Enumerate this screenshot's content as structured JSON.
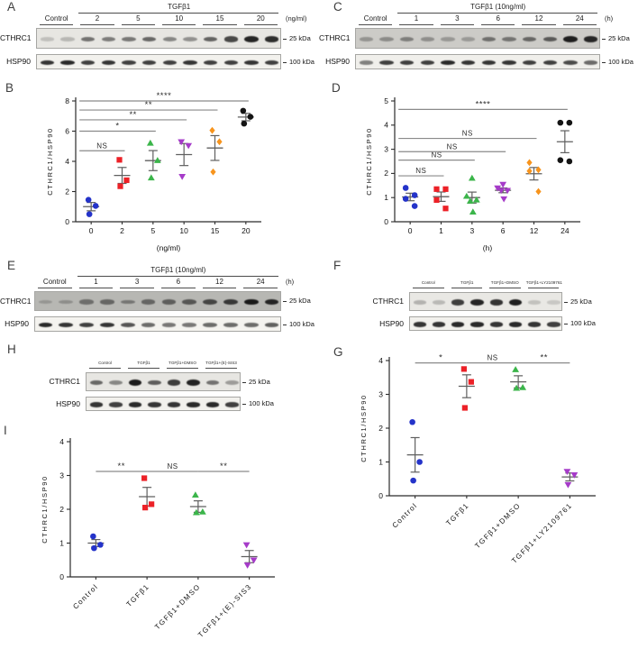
{
  "figure_background": "#ffffff",
  "marker_colors": {
    "group1_blue": "#2433c9",
    "group2_red": "#ec2127",
    "group3_green": "#3bb54a",
    "group4_purple": "#a63bc9",
    "group5_orange": "#f7941d",
    "group6_black": "#141414",
    "errorbar_gray": "#5f5f5f",
    "sig_line_gray": "#8a8a8a"
  },
  "blots": [
    {
      "id": "A",
      "panel_label": "A",
      "header": "TGFβ1",
      "unit": "(ng/ml)",
      "lane_groups": [
        "Control",
        "2",
        "5",
        "10",
        "15",
        "20"
      ],
      "rows": [
        {
          "protein": "CTHRC1",
          "marker": "25 kDa",
          "bg": "#e7e6e2",
          "bands": [
            0.18,
            0.22,
            0.55,
            0.5,
            0.52,
            0.6,
            0.45,
            0.4,
            0.62,
            0.75,
            0.92,
            0.88
          ]
        },
        {
          "protein": "HSP90",
          "marker": "100 kDa",
          "bg": "#f2f1ed",
          "bands": [
            0.85,
            0.9,
            0.8,
            0.85,
            0.8,
            0.8,
            0.8,
            0.85,
            0.8,
            0.8,
            0.85,
            0.8
          ]
        }
      ]
    },
    {
      "id": "C",
      "panel_label": "C",
      "header": "TGFβ1 (10ng/ml)",
      "unit": "(h)",
      "lane_groups": [
        "Control",
        "1",
        "3",
        "6",
        "12",
        "24"
      ],
      "rows": [
        {
          "protein": "CTHRC1",
          "marker": "25 kDa",
          "bg": "#cccbc7",
          "bands": [
            0.3,
            0.35,
            0.42,
            0.33,
            0.28,
            0.27,
            0.5,
            0.48,
            0.55,
            0.62,
            0.95,
            0.9
          ]
        },
        {
          "protein": "HSP90",
          "marker": "100 kDa",
          "bg": "#f0efeb",
          "bands": [
            0.5,
            0.8,
            0.8,
            0.8,
            0.9,
            0.85,
            0.85,
            0.85,
            0.8,
            0.8,
            0.75,
            0.6
          ]
        }
      ]
    },
    {
      "id": "E",
      "panel_label": "E",
      "header": "TGFβ1 (10ng/ml)",
      "unit": "(h)",
      "lane_groups": [
        "Control",
        "1",
        "3",
        "6",
        "12",
        "24"
      ],
      "rows": [
        {
          "protein": "CTHRC1",
          "marker": "25 kDa",
          "bg": "#b7b7b3",
          "bands": [
            0.2,
            0.25,
            0.45,
            0.5,
            0.4,
            0.5,
            0.55,
            0.6,
            0.7,
            0.78,
            0.97,
            0.9
          ]
        },
        {
          "protein": "HSP90",
          "marker": "100 kDa",
          "bg": "#f4f3ef",
          "bands": [
            0.9,
            0.85,
            0.8,
            0.85,
            0.7,
            0.6,
            0.55,
            0.55,
            0.6,
            0.6,
            0.6,
            0.65
          ]
        }
      ]
    },
    {
      "id": "F",
      "panel_label": "F",
      "header": null,
      "unit": null,
      "lane_groups": [
        "Control",
        "TGFβ1",
        "TGFβ1+DMSO",
        "TGFβ1+LY2109761"
      ],
      "rows": [
        {
          "protein": "CTHRC1",
          "marker": "25 kDa",
          "bg": "#e9e8e4",
          "bands": [
            0.25,
            0.22,
            0.8,
            0.92,
            0.85,
            0.95,
            0.18,
            0.15
          ]
        },
        {
          "protein": "HSP90",
          "marker": "100 kDa",
          "bg": "#f2f1ed",
          "bands": [
            0.85,
            0.85,
            0.9,
            0.9,
            0.85,
            0.9,
            0.85,
            0.8
          ]
        }
      ]
    },
    {
      "id": "H",
      "panel_label": "H",
      "header": null,
      "unit": null,
      "lane_groups": [
        "Control",
        "TGFβ1",
        "TGFβ1+DMSO",
        "TGFβ1+(E)-SIS3"
      ],
      "rows": [
        {
          "protein": "CTHRC1",
          "marker": "25 kDa",
          "bg": "#e7e6e2",
          "bands": [
            0.6,
            0.45,
            0.97,
            0.65,
            0.8,
            0.93,
            0.55,
            0.35
          ]
        },
        {
          "protein": "HSP90",
          "marker": "100 kDa",
          "bg": "#f2f1ed",
          "bands": [
            0.85,
            0.8,
            0.9,
            0.85,
            0.85,
            0.9,
            0.9,
            0.8
          ]
        }
      ]
    }
  ],
  "chart_data": [
    {
      "id": "B",
      "panel_label": "B",
      "type": "scatter",
      "ylabel": "CTHRC1/HSP90",
      "xlabel": "(ng/ml)",
      "ylim": [
        0,
        8
      ],
      "yticks": [
        0,
        2,
        4,
        6,
        8
      ],
      "categories": [
        "0",
        "2",
        "5",
        "10",
        "15",
        "20"
      ],
      "groups": [
        {
          "name": "0",
          "color": "#2433c9",
          "marker": "circle",
          "points": [
            1.45,
            1.05,
            0.5
          ]
        },
        {
          "name": "2",
          "color": "#ec2127",
          "marker": "square",
          "points": [
            4.1,
            2.75,
            2.35
          ]
        },
        {
          "name": "5",
          "color": "#3bb54a",
          "marker": "triangle-up",
          "points": [
            5.2,
            4.05,
            2.9
          ]
        },
        {
          "name": "10",
          "color": "#a63bc9",
          "marker": "triangle-down",
          "points": [
            5.3,
            5.05,
            3.0
          ]
        },
        {
          "name": "15",
          "color": "#f7941d",
          "marker": "diamond",
          "points": [
            6.05,
            5.3,
            3.3
          ]
        },
        {
          "name": "20",
          "color": "#141414",
          "marker": "circle",
          "points": [
            7.35,
            6.95,
            6.5
          ]
        }
      ],
      "significance": [
        {
          "from": 0,
          "to": 1,
          "label": "NS",
          "y": 4.7
        },
        {
          "from": 0,
          "to": 2,
          "label": "*",
          "y": 6.0
        },
        {
          "from": 0,
          "to": 3,
          "label": "**",
          "y": 6.75
        },
        {
          "from": 0,
          "to": 4,
          "label": "**",
          "y": 7.4
        },
        {
          "from": 0,
          "to": 5,
          "label": "****",
          "y": 8.0
        }
      ]
    },
    {
      "id": "D",
      "panel_label": "D",
      "type": "scatter",
      "ylabel": "CTHRC1/HSP90",
      "xlabel": "(h)",
      "ylim": [
        0,
        5
      ],
      "yticks": [
        0,
        1,
        2,
        3,
        4,
        5
      ],
      "categories": [
        "0",
        "1",
        "3",
        "6",
        "12",
        "24"
      ],
      "groups": [
        {
          "name": "0",
          "color": "#2433c9",
          "marker": "circle",
          "points": [
            1.4,
            1.1,
            0.95,
            0.65
          ]
        },
        {
          "name": "1",
          "color": "#ec2127",
          "marker": "square",
          "points": [
            1.35,
            1.35,
            0.9,
            0.55
          ]
        },
        {
          "name": "3",
          "color": "#3bb54a",
          "marker": "triangle-up",
          "points": [
            1.8,
            1.05,
            0.9,
            0.85,
            0.4
          ]
        },
        {
          "name": "6",
          "color": "#a63bc9",
          "marker": "triangle-down",
          "points": [
            1.55,
            1.4,
            1.3,
            1.3,
            0.95
          ]
        },
        {
          "name": "12",
          "color": "#f7941d",
          "marker": "diamond",
          "points": [
            2.45,
            2.15,
            2.1,
            1.25
          ]
        },
        {
          "name": "24",
          "color": "#141414",
          "marker": "circle",
          "points": [
            4.1,
            4.1,
            2.55,
            2.5
          ]
        }
      ],
      "significance": [
        {
          "from": 0,
          "to": 1,
          "label": "NS",
          "y": 1.9
        },
        {
          "from": 0,
          "to": 2,
          "label": "NS",
          "y": 2.55
        },
        {
          "from": 0,
          "to": 3,
          "label": "NS",
          "y": 2.9
        },
        {
          "from": 0,
          "to": 4,
          "label": "NS",
          "y": 3.45
        },
        {
          "from": 0,
          "to": 5,
          "label": "****",
          "y": 4.65
        }
      ]
    },
    {
      "id": "G",
      "panel_label": "G",
      "type": "scatter",
      "ylabel": "CTHRC1/HSP90",
      "xlabel": null,
      "ylim": [
        0,
        4
      ],
      "yticks": [
        0,
        1,
        2,
        3,
        4
      ],
      "categories": [
        "Control",
        "TGFβ1",
        "TGFβ1+DMSO",
        "TGFβ1+LY2109761"
      ],
      "rotate_labels": true,
      "groups": [
        {
          "name": "Control",
          "color": "#2433c9",
          "marker": "circle",
          "points": [
            2.18,
            1.0,
            0.45
          ]
        },
        {
          "name": "TGFβ1",
          "color": "#ec2127",
          "marker": "square",
          "points": [
            3.75,
            3.37,
            2.6
          ]
        },
        {
          "name": "TGFβ1+DMSO",
          "color": "#3bb54a",
          "marker": "triangle-up",
          "points": [
            3.73,
            3.2,
            3.18
          ]
        },
        {
          "name": "TGFβ1+LY2109761",
          "color": "#a63bc9",
          "marker": "triangle-down",
          "points": [
            0.72,
            0.62,
            0.33
          ]
        }
      ],
      "significance": [
        {
          "from": 0,
          "to": 1,
          "label": "*",
          "y": 3.93
        },
        {
          "from": 1,
          "to": 2,
          "label": "NS",
          "y": 3.93
        },
        {
          "from": 2,
          "to": 3,
          "label": "**",
          "y": 3.93
        }
      ]
    },
    {
      "id": "I",
      "panel_label": "I",
      "type": "scatter",
      "ylabel": "CTHRC1/HSP90",
      "xlabel": null,
      "ylim": [
        0,
        4
      ],
      "yticks": [
        0,
        1,
        2,
        3,
        4
      ],
      "categories": [
        "Control",
        "TGFβ1",
        "TGFβ1+DMSO",
        "TGFβ1+(E)-SIS3"
      ],
      "rotate_labels": true,
      "groups": [
        {
          "name": "Control",
          "color": "#2433c9",
          "marker": "circle",
          "points": [
            1.2,
            0.95,
            0.85
          ]
        },
        {
          "name": "TGFβ1",
          "color": "#ec2127",
          "marker": "square",
          "points": [
            2.92,
            2.15,
            2.05
          ]
        },
        {
          "name": "TGFβ1+DMSO",
          "color": "#3bb54a",
          "marker": "triangle-up",
          "points": [
            2.42,
            1.92,
            1.9
          ]
        },
        {
          "name": "TGFβ1+(E)-SIS3",
          "color": "#a63bc9",
          "marker": "triangle-down",
          "points": [
            0.95,
            0.5,
            0.35
          ]
        }
      ],
      "significance": [
        {
          "from": 0,
          "to": 1,
          "label": "**",
          "y": 3.12
        },
        {
          "from": 1,
          "to": 2,
          "label": "NS",
          "y": 3.12
        },
        {
          "from": 2,
          "to": 3,
          "label": "**",
          "y": 3.12
        }
      ]
    }
  ]
}
